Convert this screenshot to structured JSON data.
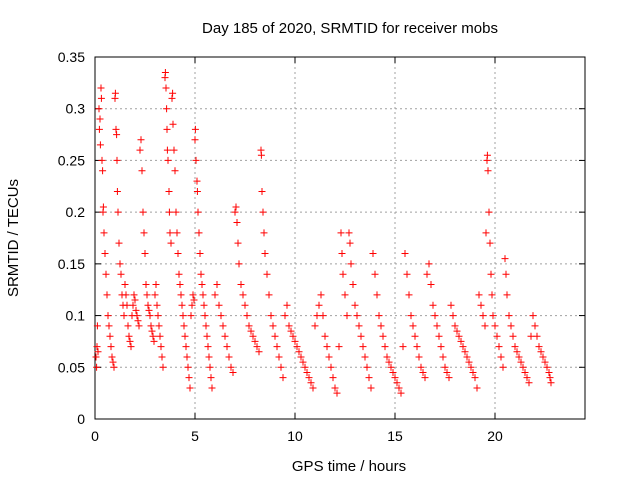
{
  "chart_data": {
    "type": "scatter",
    "title": "Day 185 of 2020, SRMTID for receiver mobs",
    "xlabel": "GPS time / hours",
    "ylabel": "SRMTID / TECUs",
    "xlim": [
      0,
      24.5
    ],
    "ylim": [
      0,
      0.35
    ],
    "x_ticks": [
      0,
      5,
      10,
      15,
      20
    ],
    "y_ticks": [
      0,
      0.05,
      0.1,
      0.15,
      0.2,
      0.25,
      0.3,
      0.35
    ],
    "x_tick_labels": [
      "0",
      "5",
      "10",
      "15",
      "20"
    ],
    "y_tick_labels": [
      "0",
      "0.05",
      "0.1",
      "0.15",
      "0.2",
      "0.25",
      "0.3",
      "0.35"
    ],
    "grid": true,
    "legend": "none",
    "marker": "plus",
    "marker_color": "#ff0000",
    "series": [
      {
        "values_xy": [
          [
            0.05,
            0.06
          ],
          [
            0.08,
            0.05
          ],
          [
            0.1,
            0.07
          ],
          [
            0.12,
            0.09
          ],
          [
            0.15,
            0.065
          ],
          [
            0.2,
            0.3
          ],
          [
            0.22,
            0.28
          ],
          [
            0.25,
            0.29
          ],
          [
            0.27,
            0.265
          ],
          [
            0.3,
            0.32
          ],
          [
            0.32,
            0.31
          ],
          [
            0.35,
            0.25
          ],
          [
            0.38,
            0.24
          ],
          [
            0.4,
            0.2
          ],
          [
            0.42,
            0.205
          ],
          [
            0.45,
            0.18
          ],
          [
            0.5,
            0.16
          ],
          [
            0.55,
            0.14
          ],
          [
            0.6,
            0.12
          ],
          [
            0.65,
            0.1
          ],
          [
            0.7,
            0.09
          ],
          [
            0.75,
            0.08
          ],
          [
            0.8,
            0.07
          ],
          [
            0.85,
            0.06
          ],
          [
            0.9,
            0.055
          ],
          [
            0.95,
            0.05
          ],
          [
            1.0,
            0.31
          ],
          [
            1.02,
            0.315
          ],
          [
            1.05,
            0.28
          ],
          [
            1.08,
            0.275
          ],
          [
            1.1,
            0.25
          ],
          [
            1.12,
            0.22
          ],
          [
            1.15,
            0.2
          ],
          [
            1.2,
            0.17
          ],
          [
            1.25,
            0.15
          ],
          [
            1.3,
            0.14
          ],
          [
            1.35,
            0.12
          ],
          [
            1.4,
            0.11
          ],
          [
            1.45,
            0.1
          ],
          [
            1.5,
            0.13
          ],
          [
            1.55,
            0.12
          ],
          [
            1.6,
            0.11
          ],
          [
            1.65,
            0.09
          ],
          [
            1.7,
            0.08
          ],
          [
            1.75,
            0.075
          ],
          [
            1.8,
            0.07
          ],
          [
            1.85,
            0.1
          ],
          [
            1.9,
            0.11
          ],
          [
            1.95,
            0.12
          ],
          [
            2.0,
            0.115
          ],
          [
            2.05,
            0.105
          ],
          [
            2.1,
            0.1
          ],
          [
            2.15,
            0.095
          ],
          [
            2.2,
            0.09
          ],
          [
            2.25,
            0.26
          ],
          [
            2.3,
            0.27
          ],
          [
            2.35,
            0.24
          ],
          [
            2.4,
            0.2
          ],
          [
            2.45,
            0.18
          ],
          [
            2.5,
            0.16
          ],
          [
            2.55,
            0.13
          ],
          [
            2.6,
            0.12
          ],
          [
            2.65,
            0.11
          ],
          [
            2.7,
            0.105
          ],
          [
            2.75,
            0.1
          ],
          [
            2.8,
            0.09
          ],
          [
            2.85,
            0.085
          ],
          [
            2.9,
            0.08
          ],
          [
            2.95,
            0.075
          ],
          [
            3.0,
            0.12
          ],
          [
            3.05,
            0.13
          ],
          [
            3.1,
            0.11
          ],
          [
            3.15,
            0.1
          ],
          [
            3.2,
            0.09
          ],
          [
            3.25,
            0.08
          ],
          [
            3.3,
            0.07
          ],
          [
            3.35,
            0.06
          ],
          [
            3.4,
            0.05
          ],
          [
            3.5,
            0.33
          ],
          [
            3.52,
            0.335
          ],
          [
            3.55,
            0.32
          ],
          [
            3.58,
            0.3
          ],
          [
            3.6,
            0.28
          ],
          [
            3.62,
            0.26
          ],
          [
            3.65,
            0.25
          ],
          [
            3.7,
            0.22
          ],
          [
            3.72,
            0.2
          ],
          [
            3.75,
            0.18
          ],
          [
            3.8,
            0.17
          ],
          [
            3.85,
            0.31
          ],
          [
            3.88,
            0.315
          ],
          [
            3.9,
            0.285
          ],
          [
            3.95,
            0.26
          ],
          [
            4.0,
            0.24
          ],
          [
            4.05,
            0.2
          ],
          [
            4.1,
            0.18
          ],
          [
            4.15,
            0.16
          ],
          [
            4.2,
            0.14
          ],
          [
            4.25,
            0.13
          ],
          [
            4.3,
            0.12
          ],
          [
            4.35,
            0.11
          ],
          [
            4.4,
            0.1
          ],
          [
            4.45,
            0.09
          ],
          [
            4.5,
            0.08
          ],
          [
            4.55,
            0.07
          ],
          [
            4.6,
            0.06
          ],
          [
            4.65,
            0.05
          ],
          [
            4.7,
            0.04
          ],
          [
            4.75,
            0.03
          ],
          [
            4.8,
            0.1
          ],
          [
            4.85,
            0.11
          ],
          [
            4.9,
            0.12
          ],
          [
            4.95,
            0.115
          ],
          [
            5.0,
            0.27
          ],
          [
            5.02,
            0.28
          ],
          [
            5.05,
            0.25
          ],
          [
            5.1,
            0.23
          ],
          [
            5.12,
            0.22
          ],
          [
            5.15,
            0.2
          ],
          [
            5.2,
            0.18
          ],
          [
            5.25,
            0.16
          ],
          [
            5.3,
            0.14
          ],
          [
            5.35,
            0.13
          ],
          [
            5.4,
            0.12
          ],
          [
            5.45,
            0.11
          ],
          [
            5.5,
            0.1
          ],
          [
            5.55,
            0.09
          ],
          [
            5.6,
            0.08
          ],
          [
            5.65,
            0.07
          ],
          [
            5.7,
            0.06
          ],
          [
            5.75,
            0.05
          ],
          [
            5.8,
            0.04
          ],
          [
            5.85,
            0.03
          ],
          [
            6.0,
            0.12
          ],
          [
            6.1,
            0.13
          ],
          [
            6.2,
            0.11
          ],
          [
            6.3,
            0.1
          ],
          [
            6.4,
            0.09
          ],
          [
            6.5,
            0.08
          ],
          [
            6.6,
            0.07
          ],
          [
            6.7,
            0.06
          ],
          [
            6.8,
            0.05
          ],
          [
            6.9,
            0.045
          ],
          [
            7.0,
            0.2
          ],
          [
            7.05,
            0.205
          ],
          [
            7.1,
            0.19
          ],
          [
            7.15,
            0.17
          ],
          [
            7.2,
            0.15
          ],
          [
            7.3,
            0.13
          ],
          [
            7.4,
            0.12
          ],
          [
            7.5,
            0.11
          ],
          [
            7.6,
            0.1
          ],
          [
            7.7,
            0.09
          ],
          [
            7.8,
            0.085
          ],
          [
            7.9,
            0.08
          ],
          [
            8.0,
            0.075
          ],
          [
            8.1,
            0.07
          ],
          [
            8.2,
            0.065
          ],
          [
            8.3,
            0.26
          ],
          [
            8.32,
            0.255
          ],
          [
            8.35,
            0.22
          ],
          [
            8.4,
            0.2
          ],
          [
            8.45,
            0.18
          ],
          [
            8.5,
            0.16
          ],
          [
            8.6,
            0.14
          ],
          [
            8.7,
            0.12
          ],
          [
            8.8,
            0.1
          ],
          [
            8.9,
            0.09
          ],
          [
            9.0,
            0.08
          ],
          [
            9.1,
            0.07
          ],
          [
            9.2,
            0.06
          ],
          [
            9.3,
            0.05
          ],
          [
            9.4,
            0.04
          ],
          [
            9.5,
            0.1
          ],
          [
            9.6,
            0.11
          ],
          [
            9.7,
            0.09
          ],
          [
            9.8,
            0.085
          ],
          [
            9.9,
            0.08
          ],
          [
            10.0,
            0.075
          ],
          [
            10.1,
            0.07
          ],
          [
            10.2,
            0.065
          ],
          [
            10.3,
            0.06
          ],
          [
            10.4,
            0.055
          ],
          [
            10.5,
            0.05
          ],
          [
            10.6,
            0.045
          ],
          [
            10.7,
            0.04
          ],
          [
            10.8,
            0.035
          ],
          [
            10.9,
            0.03
          ],
          [
            11.0,
            0.09
          ],
          [
            11.1,
            0.1
          ],
          [
            11.2,
            0.11
          ],
          [
            11.3,
            0.12
          ],
          [
            11.4,
            0.1
          ],
          [
            11.5,
            0.08
          ],
          [
            11.6,
            0.07
          ],
          [
            11.7,
            0.06
          ],
          [
            11.8,
            0.05
          ],
          [
            11.9,
            0.04
          ],
          [
            12.0,
            0.03
          ],
          [
            12.1,
            0.025
          ],
          [
            12.2,
            0.07
          ],
          [
            12.3,
            0.18
          ],
          [
            12.35,
            0.16
          ],
          [
            12.4,
            0.14
          ],
          [
            12.5,
            0.12
          ],
          [
            12.6,
            0.1
          ],
          [
            12.7,
            0.18
          ],
          [
            12.75,
            0.17
          ],
          [
            12.8,
            0.15
          ],
          [
            12.9,
            0.13
          ],
          [
            13.0,
            0.11
          ],
          [
            13.1,
            0.1
          ],
          [
            13.2,
            0.09
          ],
          [
            13.3,
            0.08
          ],
          [
            13.4,
            0.07
          ],
          [
            13.5,
            0.06
          ],
          [
            13.6,
            0.05
          ],
          [
            13.7,
            0.04
          ],
          [
            13.8,
            0.03
          ],
          [
            13.9,
            0.16
          ],
          [
            14.0,
            0.14
          ],
          [
            14.1,
            0.12
          ],
          [
            14.2,
            0.1
          ],
          [
            14.3,
            0.09
          ],
          [
            14.4,
            0.08
          ],
          [
            14.5,
            0.07
          ],
          [
            14.6,
            0.06
          ],
          [
            14.7,
            0.055
          ],
          [
            14.8,
            0.05
          ],
          [
            14.9,
            0.045
          ],
          [
            15.0,
            0.04
          ],
          [
            15.1,
            0.035
          ],
          [
            15.2,
            0.03
          ],
          [
            15.3,
            0.025
          ],
          [
            15.4,
            0.07
          ],
          [
            15.5,
            0.16
          ],
          [
            15.6,
            0.14
          ],
          [
            15.7,
            0.12
          ],
          [
            15.8,
            0.1
          ],
          [
            15.9,
            0.09
          ],
          [
            16.0,
            0.08
          ],
          [
            16.1,
            0.07
          ],
          [
            16.2,
            0.06
          ],
          [
            16.3,
            0.05
          ],
          [
            16.4,
            0.045
          ],
          [
            16.5,
            0.04
          ],
          [
            16.6,
            0.14
          ],
          [
            16.7,
            0.15
          ],
          [
            16.8,
            0.13
          ],
          [
            16.9,
            0.11
          ],
          [
            17.0,
            0.1
          ],
          [
            17.1,
            0.09
          ],
          [
            17.2,
            0.08
          ],
          [
            17.3,
            0.07
          ],
          [
            17.4,
            0.06
          ],
          [
            17.5,
            0.05
          ],
          [
            17.6,
            0.045
          ],
          [
            17.7,
            0.04
          ],
          [
            17.8,
            0.11
          ],
          [
            17.9,
            0.1
          ],
          [
            18.0,
            0.09
          ],
          [
            18.1,
            0.085
          ],
          [
            18.2,
            0.08
          ],
          [
            18.3,
            0.075
          ],
          [
            18.4,
            0.07
          ],
          [
            18.5,
            0.065
          ],
          [
            18.6,
            0.06
          ],
          [
            18.7,
            0.055
          ],
          [
            18.8,
            0.05
          ],
          [
            18.9,
            0.045
          ],
          [
            19.0,
            0.04
          ],
          [
            19.1,
            0.03
          ],
          [
            19.2,
            0.12
          ],
          [
            19.3,
            0.11
          ],
          [
            19.4,
            0.1
          ],
          [
            19.5,
            0.09
          ],
          [
            19.55,
            0.18
          ],
          [
            19.6,
            0.25
          ],
          [
            19.62,
            0.255
          ],
          [
            19.65,
            0.24
          ],
          [
            19.7,
            0.2
          ],
          [
            19.75,
            0.17
          ],
          [
            19.8,
            0.14
          ],
          [
            19.85,
            0.12
          ],
          [
            19.9,
            0.1
          ],
          [
            20.0,
            0.09
          ],
          [
            20.1,
            0.08
          ],
          [
            20.2,
            0.07
          ],
          [
            20.3,
            0.06
          ],
          [
            20.4,
            0.05
          ],
          [
            20.5,
            0.155
          ],
          [
            20.55,
            0.14
          ],
          [
            20.6,
            0.12
          ],
          [
            20.7,
            0.1
          ],
          [
            20.8,
            0.09
          ],
          [
            20.9,
            0.08
          ],
          [
            21.0,
            0.07
          ],
          [
            21.1,
            0.065
          ],
          [
            21.2,
            0.06
          ],
          [
            21.3,
            0.055
          ],
          [
            21.4,
            0.05
          ],
          [
            21.5,
            0.045
          ],
          [
            21.6,
            0.04
          ],
          [
            21.7,
            0.035
          ],
          [
            21.8,
            0.08
          ],
          [
            21.9,
            0.1
          ],
          [
            22.0,
            0.09
          ],
          [
            22.1,
            0.08
          ],
          [
            22.2,
            0.07
          ],
          [
            22.3,
            0.065
          ],
          [
            22.4,
            0.06
          ],
          [
            22.5,
            0.055
          ],
          [
            22.6,
            0.05
          ],
          [
            22.7,
            0.045
          ],
          [
            22.75,
            0.04
          ],
          [
            22.8,
            0.035
          ]
        ]
      }
    ]
  }
}
